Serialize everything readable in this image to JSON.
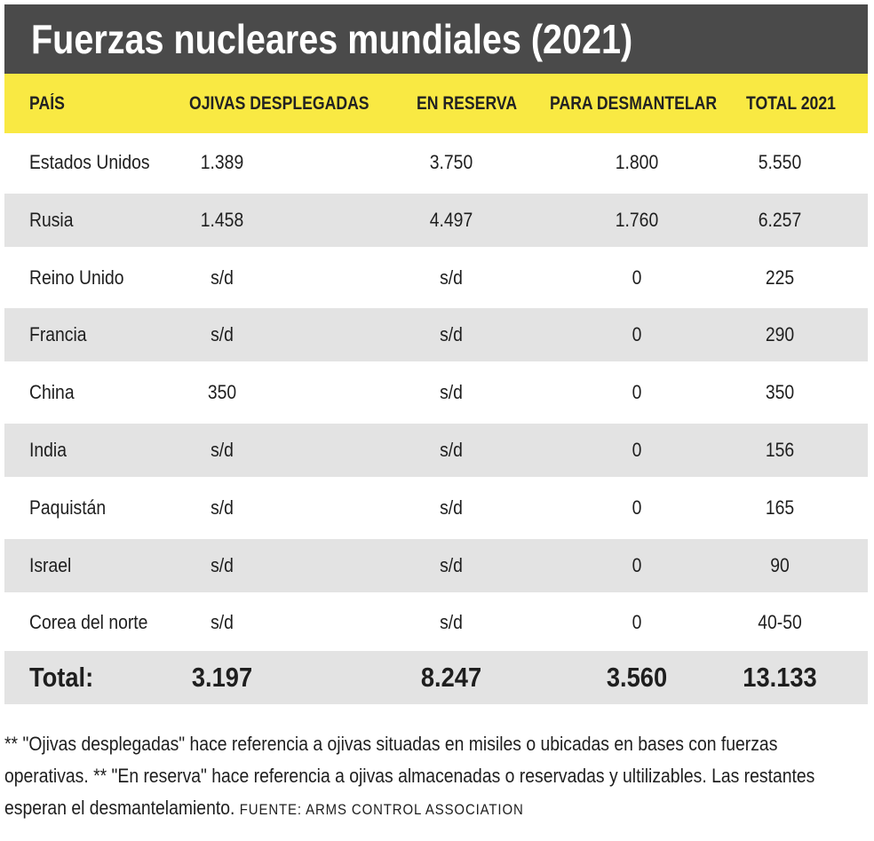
{
  "chart_data": {
    "type": "table",
    "title": "Fuerzas nucleares mundiales (2021)",
    "columns": [
      "PAÍS",
      "OJIVAS DESPLEGADAS",
      "EN RESERVA",
      "PARA DESMANTELAR",
      "TOTAL 2021"
    ],
    "rows": [
      [
        "Estados Unidos",
        "1.389",
        "3.750",
        "1.800",
        "5.550"
      ],
      [
        "Rusia",
        "1.458",
        "4.497",
        "1.760",
        "6.257"
      ],
      [
        "Reino Unido",
        "s/d",
        "s/d",
        "0",
        "225"
      ],
      [
        "Francia",
        "s/d",
        "s/d",
        "0",
        "290"
      ],
      [
        "China",
        "350",
        "s/d",
        "0",
        "350"
      ],
      [
        "India",
        "s/d",
        "s/d",
        "0",
        "156"
      ],
      [
        "Paquistán",
        "s/d",
        "s/d",
        "0",
        "165"
      ],
      [
        "Israel",
        "s/d",
        "s/d",
        "0",
        "90"
      ],
      [
        "Corea del norte",
        "s/d",
        "s/d",
        "0",
        "40-50"
      ]
    ],
    "total": [
      "Total:",
      "3.197",
      "8.247",
      "3.560",
      "13.133"
    ]
  },
  "colors": {
    "title_bg": "#4a4a4a",
    "header_bg": "#f9e943",
    "stripe": "#e3e3e3"
  },
  "footnote": {
    "text": "** \"Ojivas desplegadas\" hace referencia a ojivas situadas en misiles o ubicadas en bases con fuerzas operativas. ** \"En reserva\" hace referencia a ojivas almacenadas o reservadas y ultilizables. Las restantes esperan el desmantelamiento.",
    "source": "FUENTE: ARMS CONTROL ASSOCIATION"
  }
}
